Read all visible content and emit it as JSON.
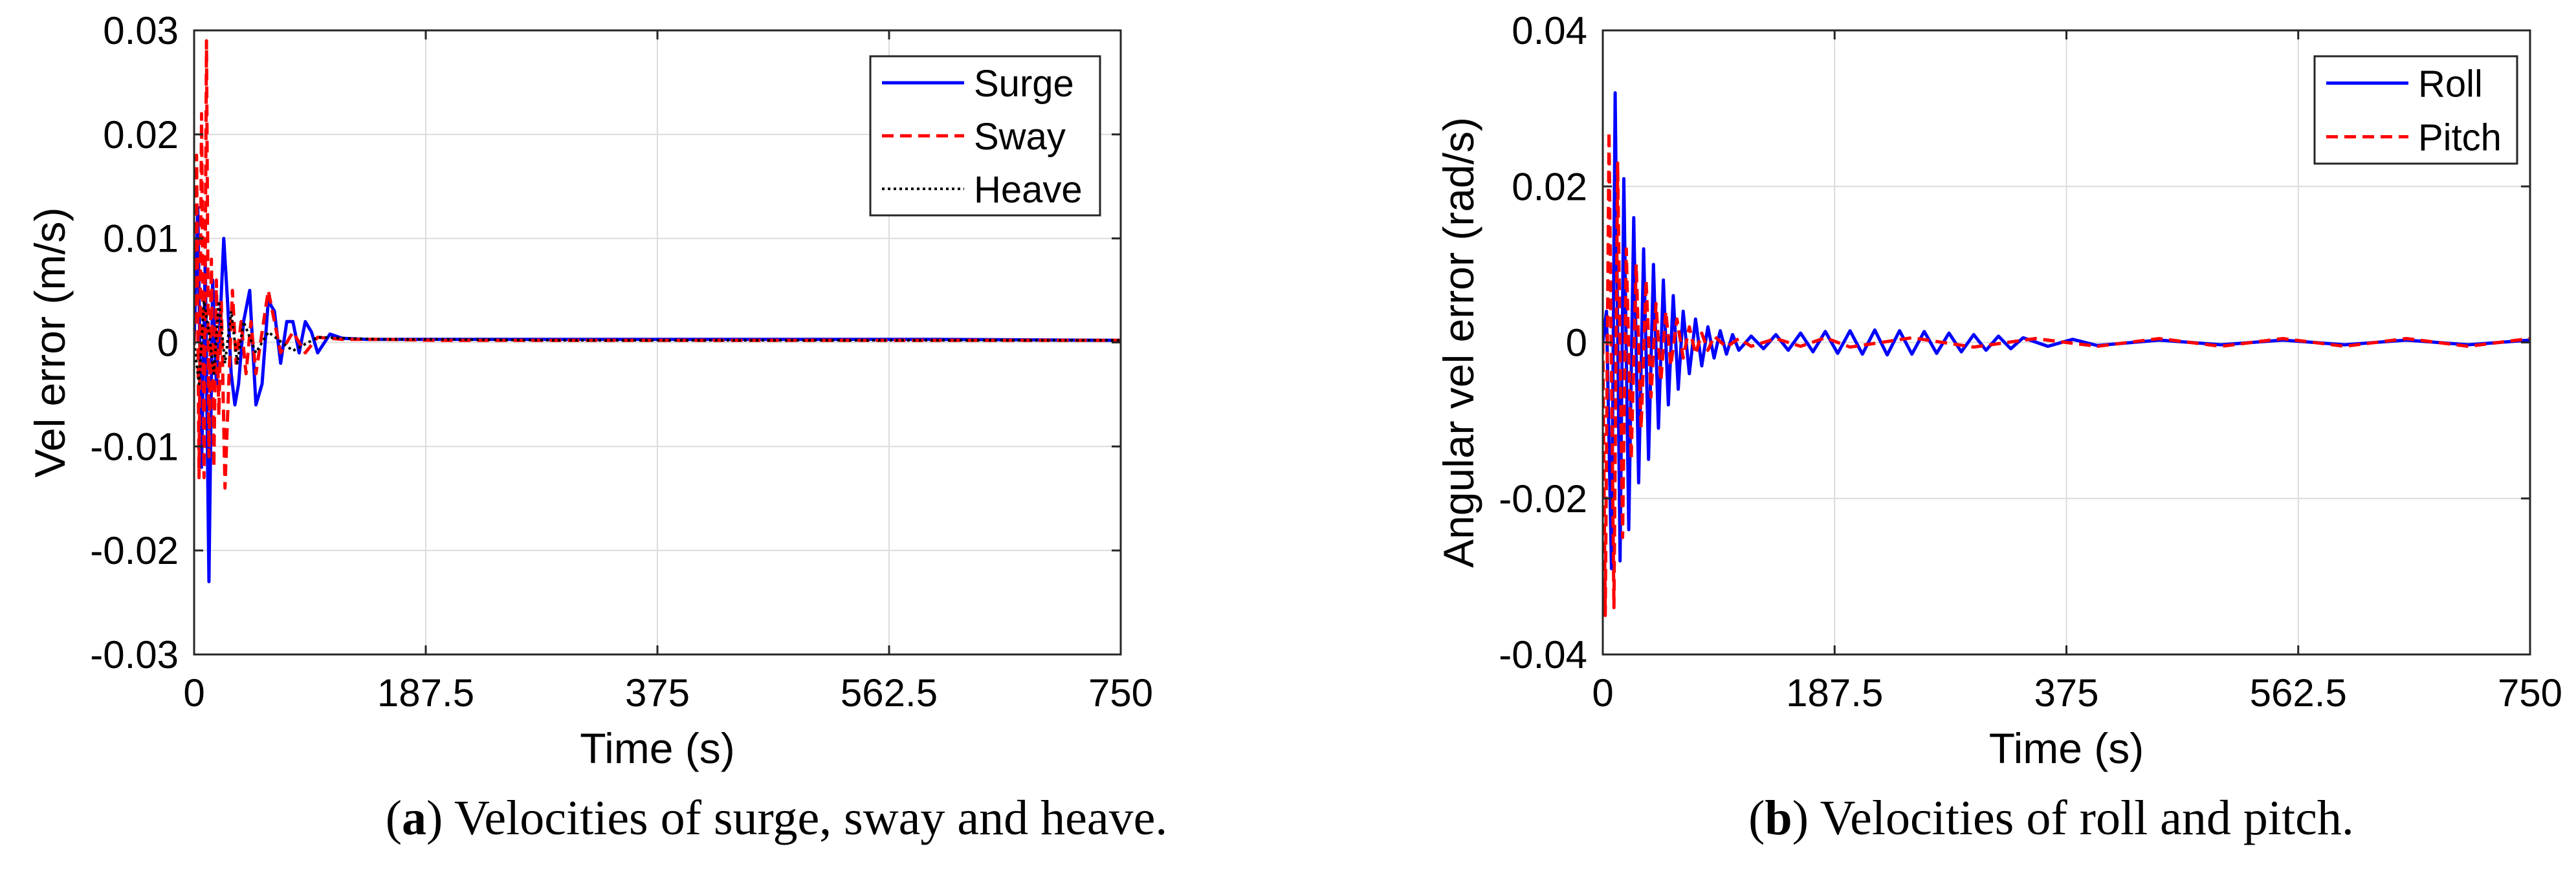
{
  "figure": {
    "captions": [
      {
        "label": "a",
        "text": "Velocities of surge, sway and heave."
      },
      {
        "label": "b",
        "text": "Velocities of roll and pitch."
      }
    ]
  },
  "chart_data": [
    {
      "type": "line",
      "id": "a",
      "title": "",
      "xlabel": "Time (s)",
      "ylabel": "Vel error (m/s)",
      "xlim": [
        0,
        750
      ],
      "ylim": [
        -0.03,
        0.03
      ],
      "xticks": [
        0,
        187.5,
        375,
        562.5,
        750
      ],
      "xtick_labels": [
        "0",
        "187.5",
        "375",
        "562.5",
        "750"
      ],
      "yticks": [
        -0.03,
        -0.02,
        -0.01,
        0,
        0.01,
        0.02,
        0.03
      ],
      "ytick_labels": [
        "-0.03",
        "-0.02",
        "-0.01",
        "0",
        "0.01",
        "0.02",
        "0.03"
      ],
      "grid": true,
      "legend_position": "top-right",
      "series": [
        {
          "name": "Surge",
          "color": "#0000ff",
          "dash": "solid",
          "x": [
            0,
            3,
            6,
            9,
            12,
            15,
            18,
            21,
            24,
            27,
            30,
            33,
            36,
            40,
            45,
            50,
            55,
            60,
            65,
            70,
            75,
            80,
            85,
            90,
            95,
            100,
            110,
            120,
            140,
            160,
            200,
            300,
            400,
            500,
            600,
            750
          ],
          "y": [
            0,
            0.013,
            -0.012,
            0.008,
            -0.023,
            0.006,
            -0.004,
            0.002,
            0.01,
            0.004,
            -0.003,
            -0.006,
            -0.004,
            0.002,
            0.005,
            -0.006,
            -0.004,
            0.004,
            0.003,
            -0.002,
            0.002,
            0.002,
            -0.001,
            0.002,
            0.001,
            -0.001,
            0.0008,
            0.0004,
            0.0003,
            0.0003,
            0.0003,
            0.0003,
            0.0003,
            0.0003,
            0.0003,
            0.0002
          ]
        },
        {
          "name": "Sway",
          "color": "#ff0000",
          "dash": "dashed",
          "x": [
            0,
            2,
            4,
            6,
            8,
            10,
            12,
            14,
            16,
            18,
            20,
            22,
            25,
            28,
            31,
            34,
            38,
            42,
            46,
            50,
            60,
            70,
            80,
            90,
            100,
            120,
            150,
            200,
            300,
            400,
            500,
            600,
            750
          ],
          "y": [
            0,
            0.018,
            -0.013,
            0.022,
            -0.013,
            0.029,
            -0.011,
            0.008,
            -0.012,
            0.006,
            -0.007,
            0.004,
            -0.014,
            -0.004,
            0.005,
            -0.002,
            0.002,
            -0.003,
            0.002,
            -0.003,
            0.005,
            -0.001,
            0.001,
            -0.001,
            0.0005,
            0.0003,
            0.0003,
            0.0002,
            0.0002,
            0.0002,
            0.0002,
            0.0002,
            0.0002
          ]
        },
        {
          "name": "Heave",
          "color": "#000000",
          "dash": "dotted",
          "x": [
            0,
            4,
            8,
            12,
            16,
            20,
            25,
            30,
            35,
            40,
            50,
            60,
            80,
            100,
            150,
            200,
            300,
            400,
            500,
            600,
            750
          ],
          "y": [
            0,
            -0.004,
            0.004,
            0.001,
            -0.003,
            0.004,
            -0.002,
            0.003,
            -0.002,
            0.002,
            -0.001,
            0.001,
            -0.0008,
            0.0005,
            0.0003,
            0.0003,
            0.0002,
            0.0002,
            0.0002,
            0.0002,
            0.0002
          ]
        }
      ]
    },
    {
      "type": "line",
      "id": "b",
      "title": "",
      "xlabel": "Time (s)",
      "ylabel": "Angular vel error (rad/s)",
      "xlim": [
        0,
        750
      ],
      "ylim": [
        -0.04,
        0.04
      ],
      "xticks": [
        0,
        187.5,
        375,
        562.5,
        750
      ],
      "xtick_labels": [
        "0",
        "187.5",
        "375",
        "562.5",
        "750"
      ],
      "yticks": [
        -0.04,
        -0.02,
        0,
        0.02,
        0.04
      ],
      "ytick_labels": [
        "-0.04",
        "-0.02",
        "0",
        "0.02",
        "0.04"
      ],
      "grid": true,
      "legend_position": "top-right",
      "series": [
        {
          "name": "Roll",
          "color": "#0000ff",
          "dash": "solid",
          "x": [
            0,
            3,
            7,
            10,
            14,
            17,
            21,
            25,
            29,
            33,
            37,
            41,
            45,
            49,
            53,
            57,
            61,
            65,
            70,
            75,
            80,
            85,
            90,
            95,
            100,
            105,
            110,
            120,
            130,
            140,
            150,
            160,
            170,
            180,
            190,
            200,
            210,
            220,
            230,
            240,
            250,
            260,
            270,
            280,
            290,
            300,
            310,
            320,
            330,
            340,
            360,
            380,
            400,
            450,
            500,
            550,
            600,
            650,
            700,
            750
          ],
          "y": [
            0,
            0.004,
            -0.029,
            0.032,
            -0.028,
            0.021,
            -0.024,
            0.016,
            -0.018,
            0.012,
            -0.015,
            0.01,
            -0.011,
            0.008,
            -0.008,
            0.006,
            -0.006,
            0.004,
            -0.004,
            0.003,
            -0.003,
            0.002,
            -0.002,
            0.0015,
            -0.0015,
            0.001,
            -0.001,
            0.0008,
            -0.0008,
            0.001,
            -0.001,
            0.0012,
            -0.0012,
            0.0014,
            -0.0014,
            0.0015,
            -0.0015,
            0.0016,
            -0.0016,
            0.0015,
            -0.0015,
            0.0014,
            -0.0014,
            0.0012,
            -0.0012,
            0.001,
            -0.001,
            0.0008,
            -0.0008,
            0.0006,
            -0.0005,
            0.0004,
            -0.0004,
            0.0003,
            -0.0003,
            0.0003,
            -0.0003,
            0.0003,
            -0.0003,
            0.0003
          ]
        },
        {
          "name": "Pitch",
          "color": "#ff0000",
          "dash": "dashed",
          "x": [
            0,
            2,
            5,
            9,
            12,
            16,
            19,
            23,
            27,
            31,
            35,
            39,
            43,
            47,
            51,
            55,
            60,
            65,
            70,
            75,
            80,
            85,
            90,
            100,
            110,
            120,
            140,
            160,
            180,
            200,
            250,
            300,
            350,
            400,
            450,
            500,
            550,
            600,
            650,
            700,
            750
          ],
          "y": [
            0,
            -0.035,
            0.027,
            -0.034,
            0.023,
            -0.025,
            0.012,
            -0.015,
            0.01,
            -0.011,
            0.008,
            -0.007,
            0.005,
            -0.005,
            0.004,
            -0.003,
            0.003,
            -0.002,
            0.002,
            -0.0015,
            0.0012,
            -0.001,
            0.0008,
            -0.0006,
            0.0005,
            -0.0005,
            0.0005,
            -0.0005,
            0.0006,
            -0.0006,
            0.0006,
            -0.0006,
            0.0005,
            -0.0005,
            0.0005,
            -0.0005,
            0.0005,
            -0.0005,
            0.0005,
            -0.0005,
            0.0005
          ]
        }
      ]
    }
  ]
}
